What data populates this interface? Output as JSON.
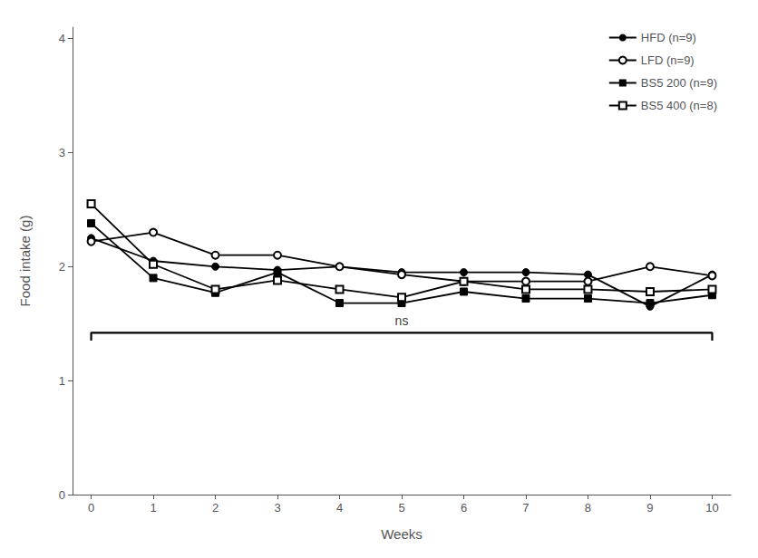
{
  "chart_data": {
    "type": "line",
    "x": [
      0,
      1,
      2,
      3,
      4,
      5,
      6,
      7,
      8,
      9,
      10
    ],
    "series": [
      {
        "name": "HFD (n=9)",
        "color": "#000000",
        "marker": "circle",
        "values": [
          2.25,
          2.05,
          2.0,
          1.97,
          2.0,
          1.95,
          1.95,
          1.95,
          1.93,
          1.65,
          1.93
        ]
      },
      {
        "name": "LFD (n=9)",
        "color": "#000000",
        "marker": "open_circle",
        "values": [
          2.22,
          2.3,
          2.1,
          2.1,
          2.0,
          1.93,
          1.87,
          1.87,
          1.87,
          2.0,
          1.92
        ]
      },
      {
        "name": "BS5 200 (n=9)",
        "color": "#000000",
        "marker": "square",
        "values": [
          2.38,
          1.9,
          1.77,
          1.95,
          1.68,
          1.68,
          1.78,
          1.72,
          1.72,
          1.68,
          1.75
        ]
      },
      {
        "name": "BS5 400 (n=8)",
        "color": "#000000",
        "marker": "open_square",
        "values": [
          2.55,
          2.02,
          1.8,
          1.88,
          1.8,
          1.73,
          1.87,
          1.8,
          1.8,
          1.78,
          1.8
        ]
      }
    ],
    "xlabel": "Weeks",
    "ylabel": "Food intake (g)",
    "xlim": [
      -0.3,
      10.3
    ],
    "xticks": [
      0,
      1,
      2,
      3,
      4,
      5,
      6,
      7,
      8,
      9,
      10
    ],
    "ylim": [
      0,
      4.1
    ],
    "yticks": [
      0,
      1,
      2,
      3,
      4
    ],
    "annotations": [
      {
        "type": "bracket",
        "text": "ns",
        "x0": 0,
        "x1": 10,
        "y": 1.42,
        "drop": 0.07,
        "color": "#000000"
      }
    ],
    "legend": "upper right",
    "grid": false
  }
}
